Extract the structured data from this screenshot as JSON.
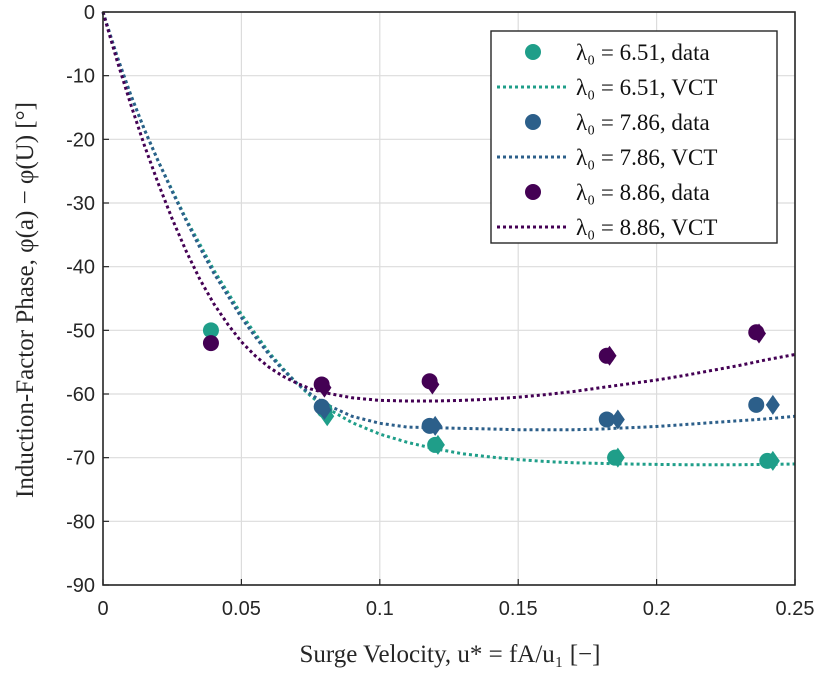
{
  "chart_data": {
    "type": "scatter",
    "xlabel": "Surge Velocity, u* = fA/u₁ [−]",
    "ylabel": "Induction-Factor Phase, φ(a) − φ(U) [°]",
    "xlim": [
      0,
      0.25
    ],
    "ylim": [
      -90,
      0
    ],
    "x_ticks": [
      0,
      0.05,
      0.1,
      0.15,
      0.2,
      0.25
    ],
    "x_tick_labels": [
      "0",
      "0.05",
      "0.1",
      "0.15",
      "0.2",
      "0.25"
    ],
    "y_ticks": [
      0,
      -10,
      -20,
      -30,
      -40,
      -50,
      -60,
      -70,
      -80,
      -90
    ],
    "y_tick_labels": [
      "0",
      "-10",
      "-20",
      "-30",
      "-40",
      "-50",
      "-60",
      "-70",
      "-80",
      "-90"
    ],
    "grid": true,
    "legend_position": "top-right",
    "series": [
      {
        "name": "λ₀ = 6.51",
        "legend_data": "data",
        "legend_model": "VCT",
        "color": "#1f9e89",
        "circles": [
          [
            0.039,
            -50.0
          ],
          [
            0.08,
            -62.5
          ],
          [
            0.12,
            -68.0
          ],
          [
            0.185,
            -70.0
          ],
          [
            0.24,
            -70.5
          ]
        ],
        "diamonds": [
          [
            0.081,
            -63.5
          ],
          [
            0.121,
            -68.0
          ],
          [
            0.186,
            -70.0
          ],
          [
            0.242,
            -70.5
          ]
        ],
        "vct": [
          [
            0.0,
            0.0
          ],
          [
            0.0025,
            -3.6
          ],
          [
            0.005,
            -7.0
          ],
          [
            0.01,
            -13.0
          ],
          [
            0.015,
            -18.5
          ],
          [
            0.02,
            -23.5
          ],
          [
            0.025,
            -28.0
          ],
          [
            0.03,
            -32.5
          ],
          [
            0.035,
            -36.5
          ],
          [
            0.04,
            -40.5
          ],
          [
            0.045,
            -44.0
          ],
          [
            0.05,
            -47.5
          ],
          [
            0.055,
            -50.5
          ],
          [
            0.06,
            -53.5
          ],
          [
            0.065,
            -56.0
          ],
          [
            0.07,
            -58.3
          ],
          [
            0.075,
            -60.3
          ],
          [
            0.08,
            -62.0
          ],
          [
            0.09,
            -64.5
          ],
          [
            0.1,
            -66.3
          ],
          [
            0.11,
            -67.6
          ],
          [
            0.12,
            -68.6
          ],
          [
            0.13,
            -69.4
          ],
          [
            0.14,
            -69.9
          ],
          [
            0.15,
            -70.3
          ],
          [
            0.16,
            -70.6
          ],
          [
            0.17,
            -70.8
          ],
          [
            0.18,
            -70.9
          ],
          [
            0.19,
            -71.0
          ],
          [
            0.2,
            -71.05
          ],
          [
            0.21,
            -71.1
          ],
          [
            0.22,
            -71.1
          ],
          [
            0.23,
            -71.1
          ],
          [
            0.24,
            -71.05
          ],
          [
            0.25,
            -71.0
          ]
        ]
      },
      {
        "name": "λ₀ = 7.86",
        "legend_data": "data",
        "legend_model": "VCT",
        "color": "#2c5f8a",
        "circles": [
          [
            0.079,
            -62.0
          ],
          [
            0.118,
            -65.0
          ],
          [
            0.182,
            -64.0
          ],
          [
            0.236,
            -61.7
          ]
        ],
        "diamonds": [
          [
            0.08,
            -62.5
          ],
          [
            0.12,
            -65.0
          ],
          [
            0.186,
            -64.0
          ],
          [
            0.242,
            -61.7
          ]
        ],
        "vct": [
          [
            0.0,
            0.0
          ],
          [
            0.0025,
            -3.4
          ],
          [
            0.005,
            -6.8
          ],
          [
            0.01,
            -13.0
          ],
          [
            0.015,
            -18.5
          ],
          [
            0.02,
            -23.5
          ],
          [
            0.025,
            -28.2
          ],
          [
            0.03,
            -32.7
          ],
          [
            0.035,
            -37.0
          ],
          [
            0.04,
            -41.0
          ],
          [
            0.045,
            -44.5
          ],
          [
            0.05,
            -48.0
          ],
          [
            0.055,
            -51.0
          ],
          [
            0.06,
            -53.8
          ],
          [
            0.065,
            -56.2
          ],
          [
            0.07,
            -58.3
          ],
          [
            0.075,
            -60.0
          ],
          [
            0.08,
            -61.5
          ],
          [
            0.09,
            -63.5
          ],
          [
            0.1,
            -64.6
          ],
          [
            0.11,
            -65.2
          ],
          [
            0.12,
            -65.3
          ],
          [
            0.13,
            -65.4
          ],
          [
            0.14,
            -65.5
          ],
          [
            0.15,
            -65.6
          ],
          [
            0.16,
            -65.6
          ],
          [
            0.17,
            -65.6
          ],
          [
            0.18,
            -65.5
          ],
          [
            0.19,
            -65.3
          ],
          [
            0.2,
            -65.1
          ],
          [
            0.21,
            -64.8
          ],
          [
            0.22,
            -64.5
          ],
          [
            0.23,
            -64.2
          ],
          [
            0.24,
            -63.9
          ],
          [
            0.25,
            -63.5
          ]
        ]
      },
      {
        "name": "λ₀ = 8.86",
        "legend_data": "data",
        "legend_model": "VCT",
        "color": "#440154",
        "circles": [
          [
            0.039,
            -52.0
          ],
          [
            0.079,
            -58.5
          ],
          [
            0.118,
            -58.0
          ],
          [
            0.182,
            -54.0
          ],
          [
            0.236,
            -50.3
          ]
        ],
        "diamonds": [
          [
            0.08,
            -59.0
          ],
          [
            0.119,
            -58.5
          ],
          [
            0.183,
            -54.0
          ],
          [
            0.237,
            -50.5
          ]
        ],
        "vct": [
          [
            0.0,
            0.0
          ],
          [
            0.0025,
            -3.8
          ],
          [
            0.005,
            -7.5
          ],
          [
            0.01,
            -14.5
          ],
          [
            0.015,
            -21.0
          ],
          [
            0.02,
            -27.0
          ],
          [
            0.025,
            -32.5
          ],
          [
            0.03,
            -37.5
          ],
          [
            0.035,
            -42.0
          ],
          [
            0.04,
            -45.8
          ],
          [
            0.045,
            -49.0
          ],
          [
            0.05,
            -51.8
          ],
          [
            0.055,
            -54.0
          ],
          [
            0.06,
            -55.8
          ],
          [
            0.065,
            -57.2
          ],
          [
            0.07,
            -58.3
          ],
          [
            0.075,
            -59.2
          ],
          [
            0.08,
            -59.8
          ],
          [
            0.09,
            -60.6
          ],
          [
            0.1,
            -61.0
          ],
          [
            0.11,
            -61.1
          ],
          [
            0.12,
            -61.1
          ],
          [
            0.13,
            -61.0
          ],
          [
            0.14,
            -60.8
          ],
          [
            0.15,
            -60.5
          ],
          [
            0.16,
            -60.1
          ],
          [
            0.17,
            -59.6
          ],
          [
            0.18,
            -59.0
          ],
          [
            0.19,
            -58.4
          ],
          [
            0.2,
            -57.8
          ],
          [
            0.21,
            -57.1
          ],
          [
            0.22,
            -56.3
          ],
          [
            0.23,
            -55.5
          ],
          [
            0.24,
            -54.6
          ],
          [
            0.25,
            -53.8
          ]
        ]
      }
    ]
  }
}
